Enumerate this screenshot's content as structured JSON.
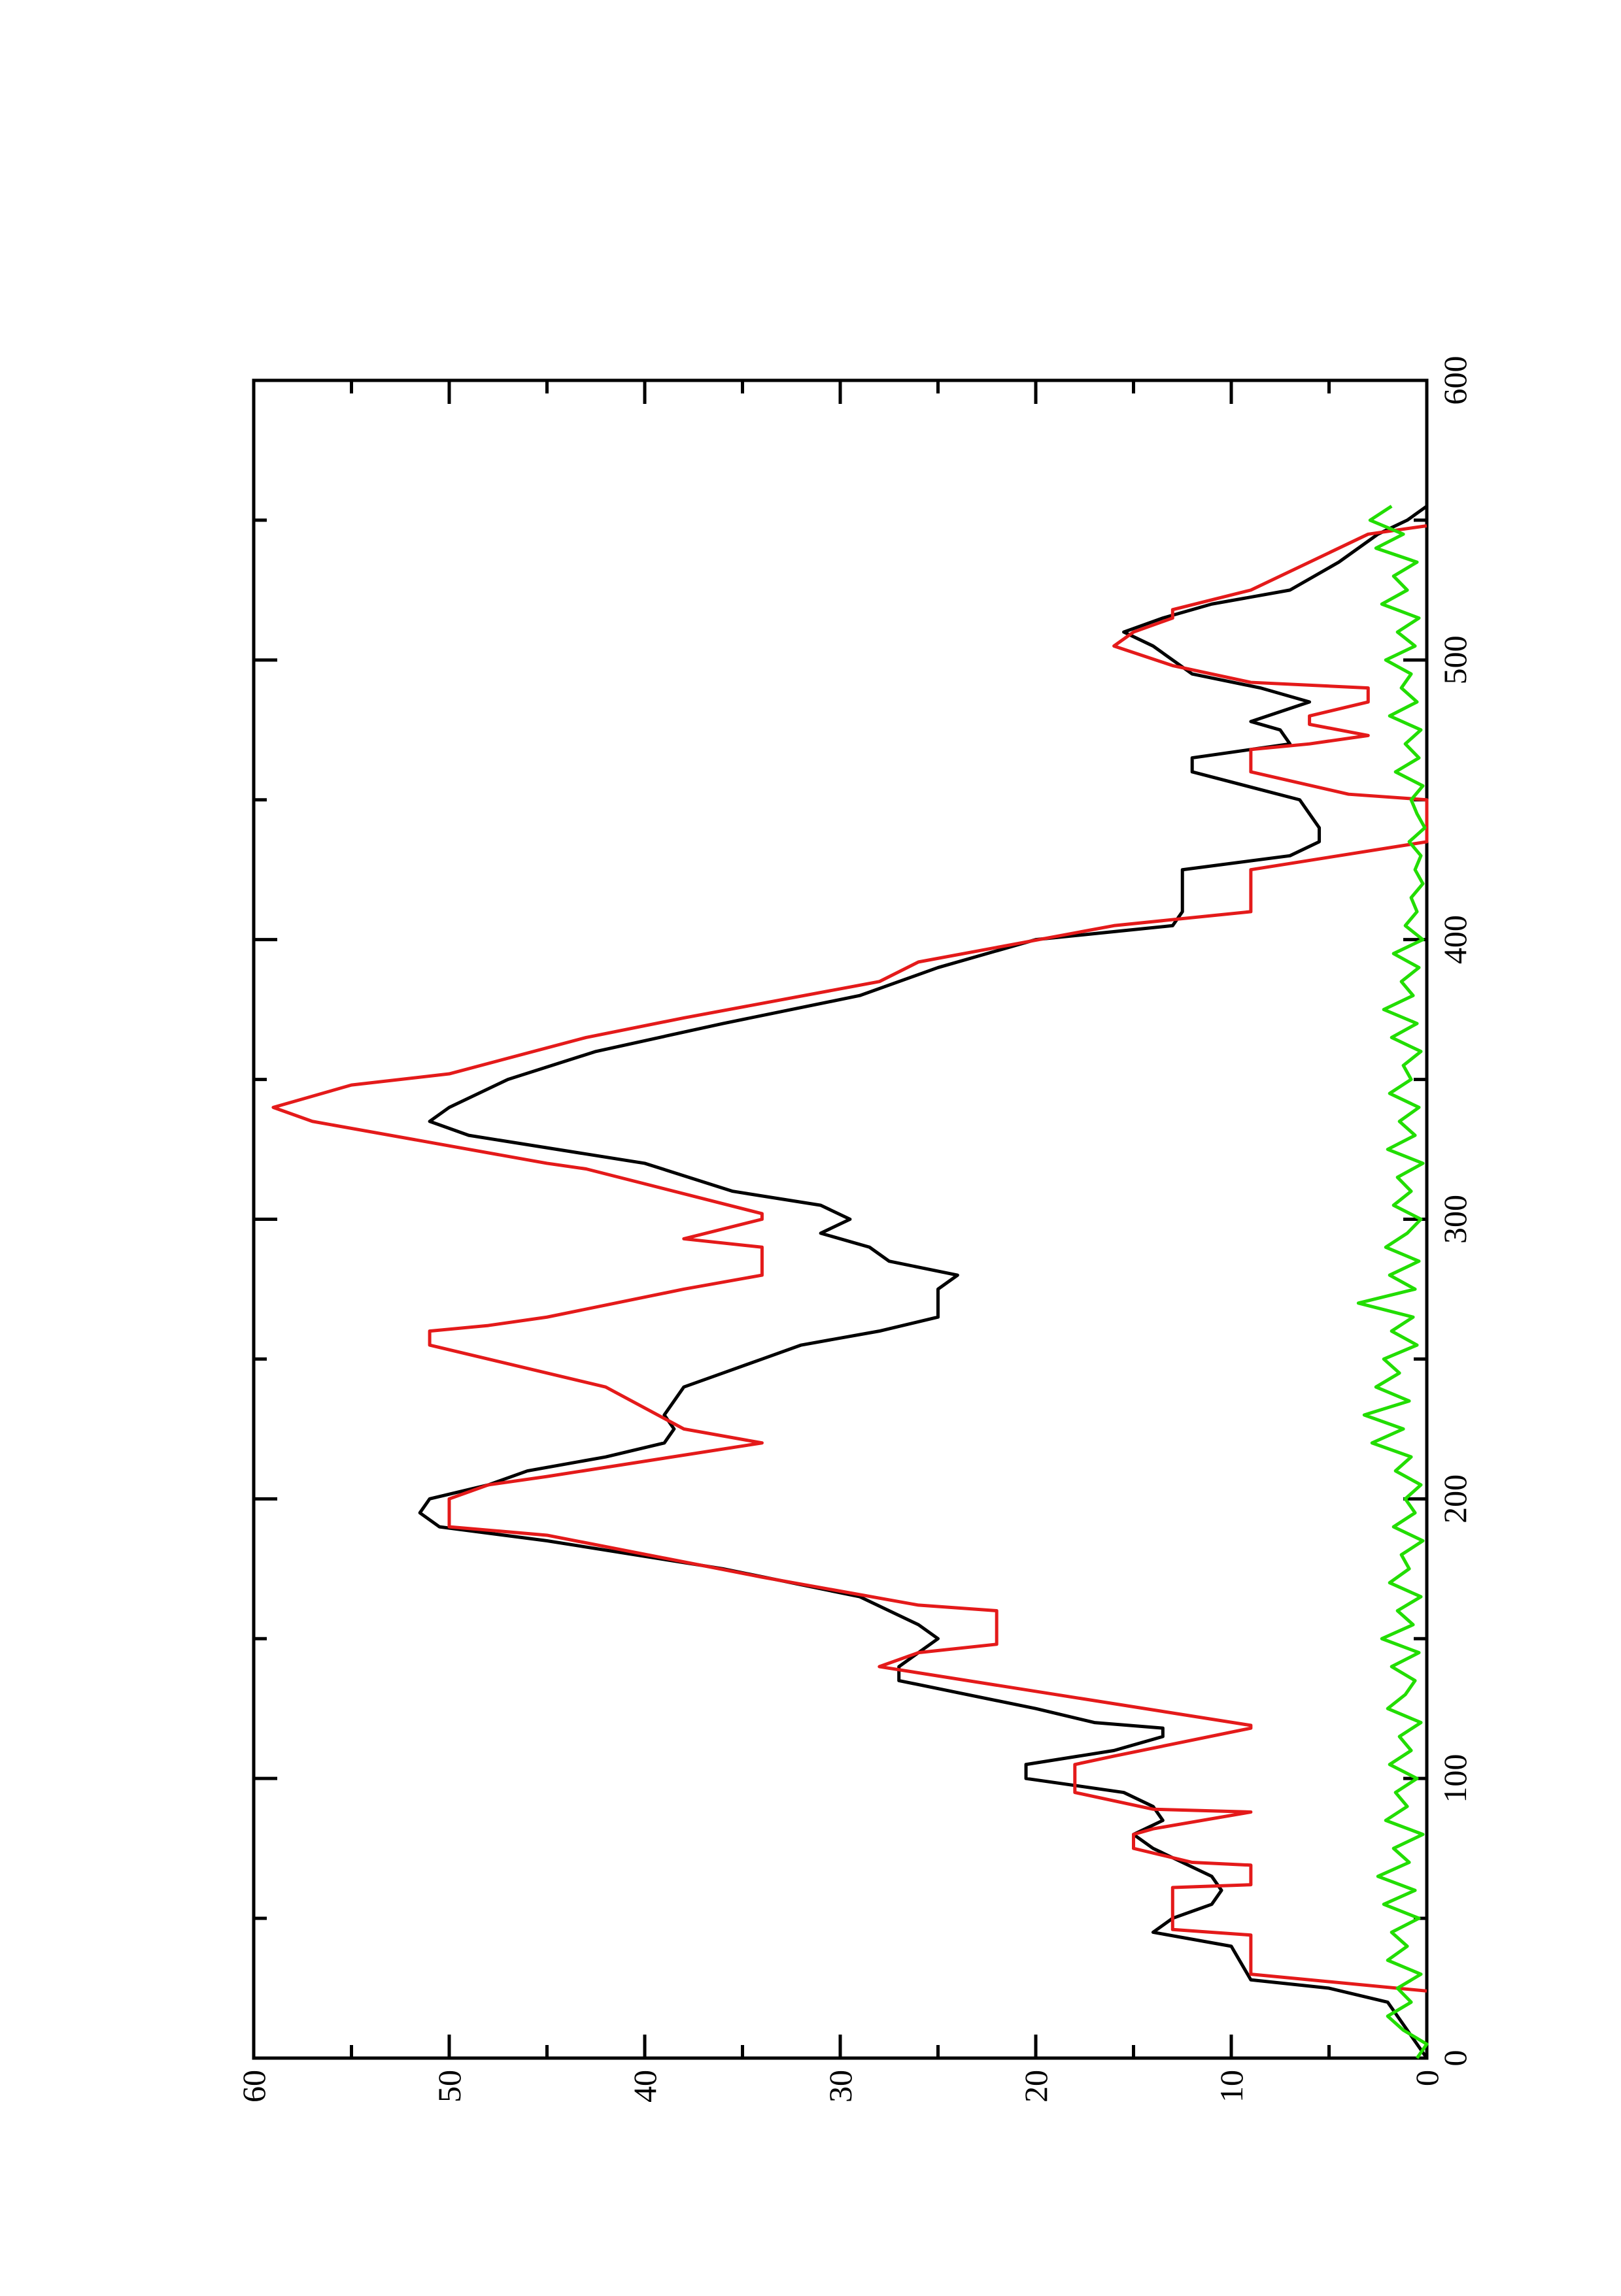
{
  "chart_data": {
    "type": "line",
    "xlim": [
      0,
      600
    ],
    "xticks": [
      0,
      100,
      200,
      300,
      400,
      500,
      600
    ],
    "ylim": [
      0,
      60
    ],
    "yticks": [
      0,
      10,
      20,
      30,
      40,
      50,
      60
    ],
    "series": [
      {
        "color": "#000000",
        "x": [
          0,
          10,
          20,
          25,
          28,
          40,
          45,
          50,
          55,
          60,
          65,
          75,
          80,
          85,
          90,
          95,
          100,
          105,
          110,
          115,
          118,
          120,
          125,
          135,
          140,
          145,
          150,
          155,
          165,
          175,
          185,
          190,
          195,
          200,
          205,
          210,
          215,
          220,
          225,
          230,
          240,
          245,
          250,
          255,
          260,
          265,
          275,
          280,
          285,
          290,
          295,
          300,
          305,
          310,
          320,
          330,
          335,
          340,
          350,
          360,
          370,
          380,
          390,
          400,
          405,
          410,
          425,
          430,
          435,
          440,
          445,
          450,
          460,
          465,
          470,
          475,
          478,
          485,
          490,
          495,
          505,
          510,
          515,
          520,
          525,
          535,
          545,
          550,
          555
        ],
        "values": [
          0,
          1,
          2,
          5,
          9,
          10,
          14,
          13,
          11,
          10.5,
          11,
          14,
          15,
          13.5,
          14,
          15.5,
          20.5,
          20.5,
          16,
          13.5,
          13.5,
          17,
          20,
          27,
          27,
          26,
          25,
          26,
          29,
          36,
          45,
          50.5,
          51.5,
          51,
          48,
          46,
          42,
          39,
          38.5,
          39,
          38,
          36,
          34,
          32,
          28,
          25,
          25,
          24,
          27.5,
          28.5,
          31,
          29.5,
          31,
          35.5,
          40,
          49,
          51,
          50,
          47,
          42.5,
          36,
          29,
          25,
          20,
          13,
          12.5,
          12.5,
          7,
          5.5,
          5.5,
          6,
          6.5,
          12,
          12,
          7,
          7.5,
          9,
          6,
          8.5,
          12,
          14,
          15.5,
          13.5,
          11,
          7,
          4.5,
          2.5,
          1,
          0
        ]
      },
      {
        "color": "#e41a1a",
        "x": [
          24,
          30,
          44,
          46,
          61,
          62,
          69,
          70,
          75,
          80,
          82,
          88,
          89,
          95,
          105,
          108,
          118,
          119,
          140,
          145,
          148,
          160,
          162,
          172,
          187,
          190,
          200,
          205,
          208,
          220,
          225,
          240,
          245,
          250,
          255,
          260,
          262,
          265,
          275,
          280,
          290,
          293,
          300,
          302,
          318,
          320,
          335,
          340,
          348,
          352,
          365,
          372,
          385,
          392,
          405,
          410,
          425,
          435,
          450,
          452,
          460,
          468,
          470,
          473,
          477,
          480,
          485,
          490,
          492,
          498,
          505,
          510,
          515,
          518,
          525,
          545,
          548
        ],
        "values": [
          0,
          9,
          9,
          13,
          13,
          9,
          9,
          12,
          15,
          15,
          14,
          9,
          14,
          18,
          18,
          16,
          9,
          9,
          28,
          26,
          22,
          22,
          26,
          34,
          45,
          50,
          50,
          48,
          45,
          34,
          38,
          42,
          45,
          48,
          51,
          51,
          48,
          45,
          38,
          34,
          34,
          38,
          34,
          34,
          43,
          45,
          57,
          59,
          55,
          50,
          43,
          38,
          28,
          26,
          16,
          9,
          9,
          0,
          0,
          4,
          9,
          9,
          6,
          3,
          6,
          6,
          3,
          3,
          9,
          13,
          16,
          15,
          13,
          13,
          9,
          3,
          0
        ]
      },
      {
        "color": "#22dd00",
        "x": [
          0,
          5,
          10,
          15,
          20,
          25,
          30,
          35,
          40,
          45,
          50,
          55,
          60,
          65,
          70,
          75,
          80,
          85,
          90,
          95,
          100,
          105,
          110,
          115,
          120,
          125,
          130,
          135,
          140,
          145,
          150,
          155,
          160,
          165,
          170,
          175,
          180,
          185,
          190,
          195,
          200,
          205,
          210,
          215,
          220,
          225,
          230,
          235,
          240,
          245,
          250,
          255,
          260,
          265,
          270,
          275,
          280,
          285,
          290,
          295,
          300,
          305,
          310,
          315,
          320,
          325,
          330,
          335,
          340,
          345,
          350,
          355,
          360,
          365,
          370,
          375,
          380,
          385,
          390,
          395,
          400,
          405,
          410,
          415,
          420,
          425,
          430,
          435,
          440,
          445,
          450,
          455,
          460,
          465,
          470,
          475,
          480,
          485,
          490,
          495,
          500,
          505,
          510,
          515,
          520,
          525,
          530,
          535,
          540,
          545,
          550,
          555
        ],
        "values": [
          0.5,
          0,
          1.2,
          2,
          0.8,
          1.5,
          0.3,
          2,
          1,
          1.8,
          0.4,
          2.2,
          0.6,
          2.5,
          0.9,
          1.7,
          0.2,
          2.1,
          1,
          1.6,
          0.5,
          1.9,
          0.8,
          1.4,
          0.3,
          2,
          1.1,
          0.6,
          1.8,
          0.4,
          2.3,
          0.7,
          1.5,
          0.3,
          1.9,
          0.9,
          1.3,
          0.2,
          1.7,
          0.6,
          1.1,
          0.3,
          1.6,
          0.8,
          2.8,
          1.2,
          3.2,
          0.9,
          2.6,
          1.4,
          2.2,
          0.5,
          1.8,
          0.7,
          3.5,
          0.6,
          1.9,
          0.4,
          2.1,
          1,
          0.3,
          1.7,
          0.8,
          1.5,
          0.2,
          2,
          0.6,
          1.4,
          0.4,
          1.9,
          0.8,
          1.2,
          0.3,
          1.8,
          0.5,
          2.2,
          0.7,
          1.3,
          0.4,
          1.7,
          0.2,
          1.1,
          0.5,
          0.8,
          0.2,
          0.6,
          0.3,
          0.9,
          0.1,
          0.5,
          0.8,
          0.2,
          1.6,
          0.4,
          1.1,
          0.3,
          1.9,
          0.5,
          1.3,
          0.8,
          2.1,
          0.6,
          1.5,
          0.4,
          2.3,
          1,
          1.7,
          0.5,
          2.6,
          1.2,
          2.9,
          1.8
        ]
      }
    ]
  }
}
